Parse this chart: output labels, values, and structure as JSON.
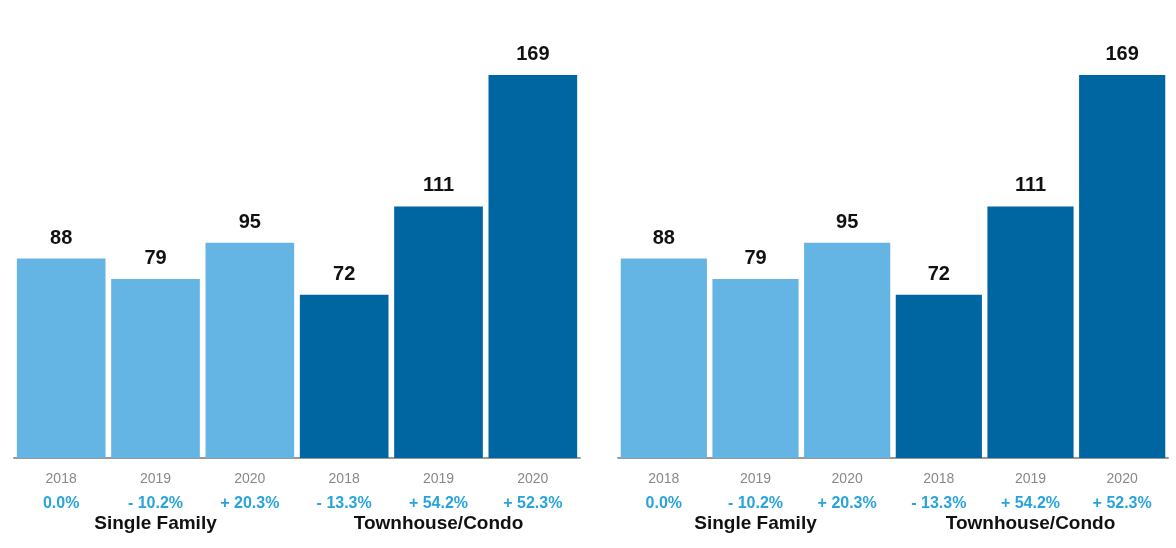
{
  "chart_data": [
    {
      "type": "bar",
      "categories": [
        "2018",
        "2019",
        "2020",
        "2018",
        "2019",
        "2020"
      ],
      "values": [
        88,
        79,
        95,
        72,
        111,
        169
      ],
      "colors": [
        "#65b5e4",
        "#65b5e4",
        "#65b5e4",
        "#0066a1",
        "#0066a1",
        "#0066a1"
      ],
      "data_labels": true,
      "annotations": [
        "0.0%",
        "- 10.2%",
        "+ 20.3%",
        "- 13.3%",
        "+ 54.2%",
        "+ 52.3%",
        "Single Family",
        "Townhouse/Condo"
      ]
    },
    {
      "type": "bar",
      "categories": [
        "2018",
        "2019",
        "2020",
        "2018",
        "2019",
        "2020"
      ],
      "values": [
        88,
        79,
        95,
        72,
        111,
        169
      ],
      "colors": [
        "#65b5e4",
        "#65b5e4",
        "#65b5e4",
        "#0066a1",
        "#0066a1",
        "#0066a1"
      ],
      "data_labels": true,
      "annotations": [
        "0.0%",
        "- 10.2%",
        "+ 20.3%",
        "- 13.3%",
        "+ 54.2%",
        "+ 52.3%",
        "Single Family",
        "Townhouse/Condo"
      ]
    }
  ]
}
